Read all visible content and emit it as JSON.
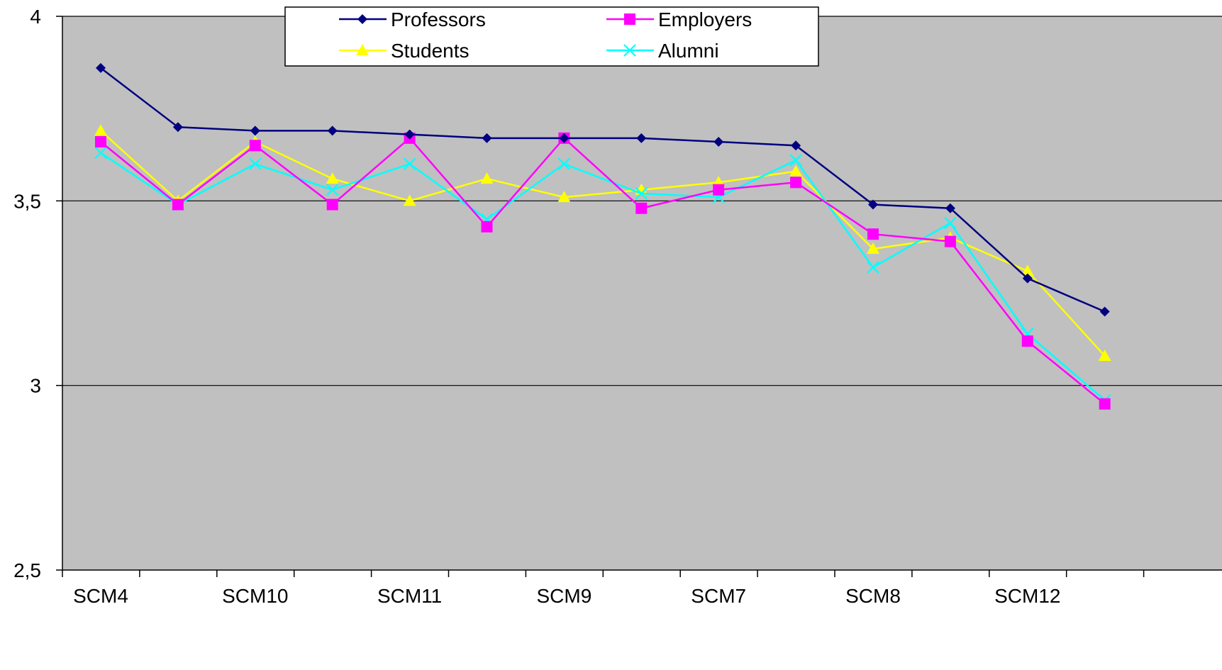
{
  "chart_data": {
    "type": "line",
    "title": "",
    "xlabel": "",
    "ylabel": "",
    "ylim": [
      2.5,
      4
    ],
    "yticks": [
      {
        "value": 4,
        "label": "4"
      },
      {
        "value": 3.5,
        "label": "3,5"
      },
      {
        "value": 3,
        "label": "3"
      },
      {
        "value": 2.5,
        "label": "2,5"
      }
    ],
    "gridlines": [
      4,
      3.5,
      3
    ],
    "categories": [
      "SCM4",
      "",
      "SCM10",
      "",
      "SCM11",
      "",
      "SCM9",
      "",
      "SCM7",
      "",
      "SCM8",
      "",
      "SCM12",
      ""
    ],
    "plot_background": "#c0c0c0",
    "legend_position": "top-center",
    "series": [
      {
        "name": "Professors",
        "color": "#000080",
        "marker": "diamond",
        "values": [
          3.86,
          3.7,
          3.69,
          3.69,
          3.68,
          3.67,
          3.67,
          3.67,
          3.66,
          3.65,
          3.49,
          3.48,
          3.29,
          3.2
        ]
      },
      {
        "name": "Employers",
        "color": "#ff00ff",
        "marker": "square",
        "values": [
          3.66,
          3.49,
          3.65,
          3.49,
          3.67,
          3.43,
          3.67,
          3.48,
          3.53,
          3.55,
          3.41,
          3.39,
          3.12,
          2.95
        ]
      },
      {
        "name": "Students",
        "color": "#ffff00",
        "marker": "triangle",
        "values": [
          3.69,
          3.5,
          3.66,
          3.56,
          3.5,
          3.56,
          3.51,
          3.53,
          3.55,
          3.58,
          3.37,
          3.4,
          3.31,
          3.08
        ]
      },
      {
        "name": "Alumni",
        "color": "#00ffff",
        "marker": "x",
        "values": [
          3.63,
          3.49,
          3.6,
          3.53,
          3.6,
          3.45,
          3.6,
          3.52,
          3.51,
          3.61,
          3.32,
          3.44,
          3.14,
          2.96
        ]
      }
    ]
  }
}
